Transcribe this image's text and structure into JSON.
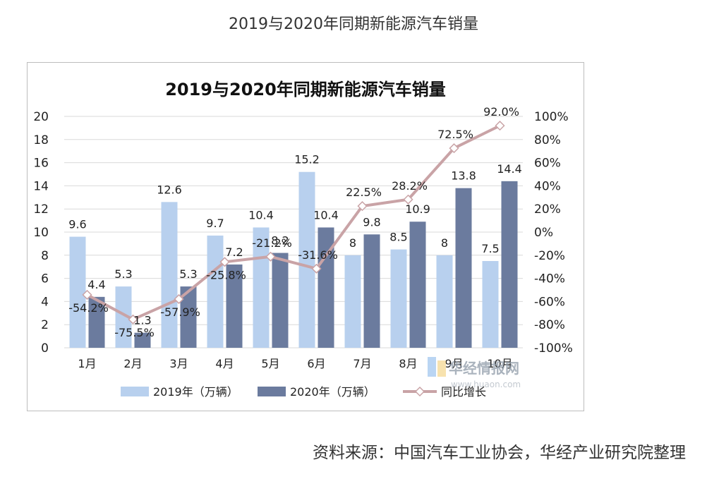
{
  "page": {
    "title": "2019与2020年同期新能源汽车销量",
    "source": "资料来源：中国汽车工业协会，华经产业研究院整理",
    "watermark": "华经情报网",
    "watermark_sub": "www.huaon.com"
  },
  "chart_data": {
    "type": "bar",
    "title": "2019与2020年同期新能源汽车销量",
    "categories": [
      "1月",
      "2月",
      "3月",
      "4月",
      "5月",
      "6月",
      "7月",
      "8月",
      "9月",
      "10月"
    ],
    "series": [
      {
        "name": "2019年（万辆）",
        "type": "bar",
        "axis": "left",
        "color": "#b8d0ee",
        "values": [
          9.6,
          5.3,
          12.6,
          9.7,
          10.4,
          15.2,
          8,
          8.5,
          8,
          7.5
        ],
        "labels": [
          "9.6",
          "5.3",
          "12.6",
          "9.7",
          "10.4",
          "15.2",
          "8",
          "8.5",
          "8",
          "7.5"
        ]
      },
      {
        "name": "2020年（万辆）",
        "type": "bar",
        "axis": "left",
        "color": "#6b7b9e",
        "values": [
          4.4,
          1.3,
          5.3,
          7.2,
          8.2,
          10.4,
          9.8,
          10.9,
          13.8,
          14.4
        ],
        "labels": [
          "4.4",
          "1.3",
          "5.3",
          "7.2",
          "8.2",
          "10.4",
          "9.8",
          "10.9",
          "13.8",
          "14.4"
        ]
      },
      {
        "name": "同比增长",
        "type": "line",
        "axis": "right",
        "color": "#c9a3a6",
        "values": [
          -54.2,
          -75.5,
          -57.9,
          -25.8,
          -21.2,
          -31.6,
          22.5,
          28.2,
          72.5,
          92.0
        ],
        "labels": [
          "-54.2%",
          "-75.5%",
          "-57.9%",
          "-25.8%",
          "-21.2%",
          "-31.6%",
          "22.5%",
          "28.2%",
          "72.5%",
          "92.0%"
        ]
      }
    ],
    "y_left": {
      "min": 0,
      "max": 20,
      "ticks": [
        "0",
        "2",
        "4",
        "6",
        "8",
        "10",
        "12",
        "14",
        "16",
        "18",
        "20"
      ]
    },
    "y_right": {
      "min": -100,
      "max": 100,
      "ticks": [
        "-100%",
        "-80%",
        "-60%",
        "-40%",
        "-20%",
        "0%",
        "20%",
        "40%",
        "60%",
        "80%",
        "100%"
      ]
    },
    "grid": true,
    "legend_position": "bottom"
  }
}
